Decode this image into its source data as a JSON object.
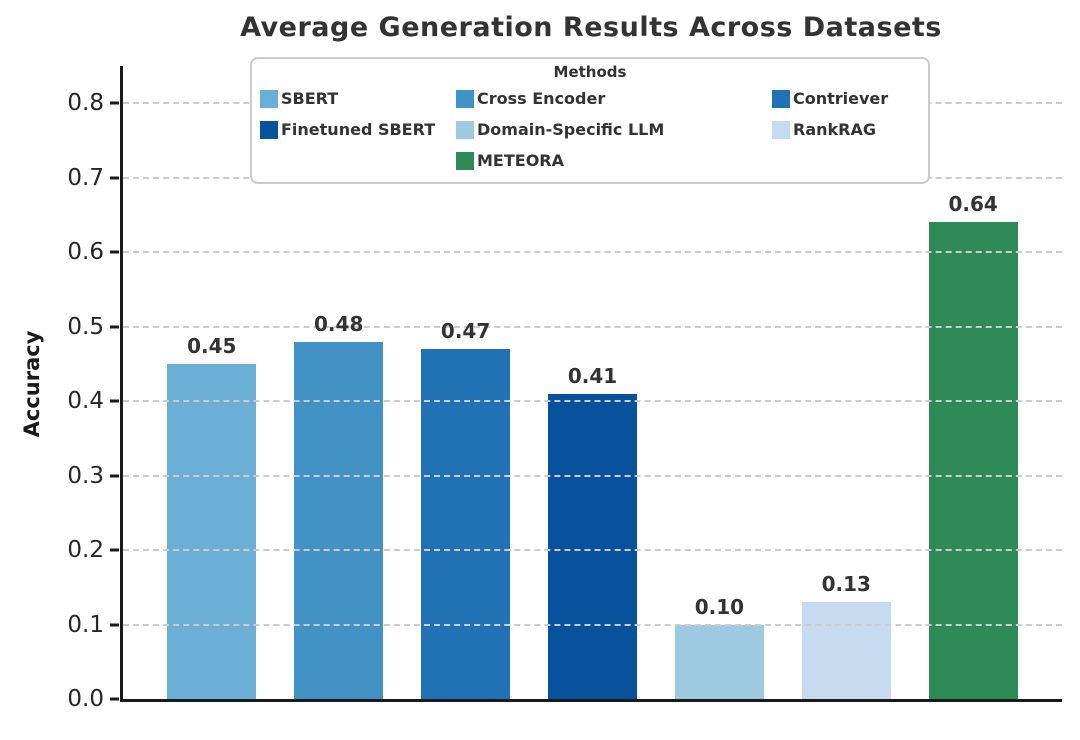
{
  "chart_data": {
    "type": "bar",
    "title": "Average Generation Results Across Datasets",
    "ylabel": "Accuracy",
    "xlabel": "",
    "ylim": [
      0,
      0.85
    ],
    "yticks": [
      0.0,
      0.1,
      0.2,
      0.3,
      0.4,
      0.5,
      0.6,
      0.7,
      0.8
    ],
    "grid": "horizontal-dashed",
    "grid_color": "#cccccc",
    "axis_color": "#1a1a1a",
    "categories": [
      "SBERT",
      "Cross Encoder",
      "Contriever",
      "Finetuned SBERT",
      "Domain-Specific LLM",
      "RankRAG",
      "METEORA"
    ],
    "values": [
      0.45,
      0.48,
      0.47,
      0.41,
      0.1,
      0.13,
      0.64
    ],
    "value_labels": [
      "0.45",
      "0.48",
      "0.47",
      "0.41",
      "0.10",
      "0.13",
      "0.64"
    ],
    "colors": [
      "#6baed6",
      "#4292c6",
      "#2171b5",
      "#08519c",
      "#9ecae1",
      "#c6dbef",
      "#2e8b57"
    ],
    "legend": {
      "title": "Methods",
      "position": "upper center",
      "rows": [
        [
          "SBERT",
          "Cross Encoder",
          "Contriever"
        ],
        [
          "Finetuned SBERT",
          "Domain-Specific LLM",
          "RankRAG"
        ],
        [
          "",
          "METEORA",
          ""
        ]
      ]
    }
  }
}
